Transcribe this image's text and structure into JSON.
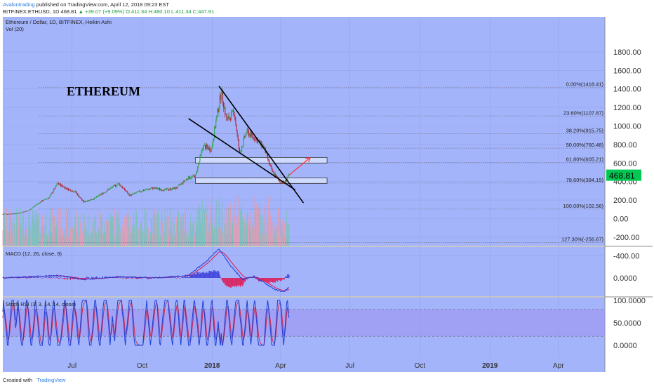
{
  "header": {
    "author": "Avalontrading",
    "published_text": "published on TradingView.com, April 12, 2018 09:23 EST",
    "symbol": "BITFINEX:ETHUSD, 1D",
    "last": "468.81",
    "change": "▲ +39.07 (+9.09%)",
    "ohlc": "O:411.34 H:480.10 L:411.34 C:447.91"
  },
  "footer": {
    "created_with": "Created with",
    "brand": "TradingView"
  },
  "colors": {
    "background": "#a3b4fb",
    "up_candle": "#2fa34a",
    "down_candle": "#b22234",
    "fib_line": "#7a7a9a",
    "macd_line": "#1f3fd6",
    "signal_line": "#e0154f",
    "stoch_k": "#1f3fd6",
    "stoch_d": "#d12a4f",
    "stoch_band": "#9e93f0",
    "price_tag": "#00c853",
    "trendline": "#000000",
    "arrow": "#ff3030",
    "volume_up": "#79c3b3",
    "volume_down": "#e79aa9"
  },
  "chart_data": [
    {
      "type": "candlestick",
      "title": "Ethereum / Dollar, 1D, BITFINEX, Heikin Ashi",
      "subtitle": "Vol (20)",
      "annotation": "ETHEREUM",
      "y_ticks": [
        "1800.00",
        "1600.00",
        "1400.00",
        "1200.00",
        "1000.00",
        "800.00",
        "600.00",
        "400.00",
        "200.00",
        "0.00",
        "-200.00",
        "-400.00"
      ],
      "ylim": [
        -450,
        1900
      ],
      "last_price_label": "468.81",
      "last_price": 468.81,
      "x_ticks": [
        "Jul",
        "Oct",
        "2018",
        "Apr",
        "Jul",
        "Oct",
        "2019",
        "Apr"
      ],
      "close_series": [
        {
          "date": "2017-04-01",
          "close": 50
        },
        {
          "date": "2017-04-20",
          "close": 55
        },
        {
          "date": "2017-05-05",
          "close": 90
        },
        {
          "date": "2017-05-20",
          "close": 180
        },
        {
          "date": "2017-06-01",
          "close": 230
        },
        {
          "date": "2017-06-12",
          "close": 380
        },
        {
          "date": "2017-06-25",
          "close": 320
        },
        {
          "date": "2017-07-05",
          "close": 290
        },
        {
          "date": "2017-07-16",
          "close": 180
        },
        {
          "date": "2017-07-31",
          "close": 220
        },
        {
          "date": "2017-08-15",
          "close": 300
        },
        {
          "date": "2017-08-31",
          "close": 380
        },
        {
          "date": "2017-09-15",
          "close": 250
        },
        {
          "date": "2017-09-30",
          "close": 300
        },
        {
          "date": "2017-10-15",
          "close": 330
        },
        {
          "date": "2017-10-31",
          "close": 310
        },
        {
          "date": "2017-11-15",
          "close": 330
        },
        {
          "date": "2017-11-30",
          "close": 440
        },
        {
          "date": "2017-12-10",
          "close": 460
        },
        {
          "date": "2017-12-20",
          "close": 780
        },
        {
          "date": "2017-12-31",
          "close": 750
        },
        {
          "date": "2018-01-05",
          "close": 1000
        },
        {
          "date": "2018-01-13",
          "close": 1380
        },
        {
          "date": "2018-01-20",
          "close": 1060
        },
        {
          "date": "2018-01-30",
          "close": 1150
        },
        {
          "date": "2018-02-06",
          "close": 700
        },
        {
          "date": "2018-02-15",
          "close": 940
        },
        {
          "date": "2018-02-27",
          "close": 860
        },
        {
          "date": "2018-03-10",
          "close": 770
        },
        {
          "date": "2018-03-20",
          "close": 520
        },
        {
          "date": "2018-03-31",
          "close": 400
        },
        {
          "date": "2018-04-06",
          "close": 390
        },
        {
          "date": "2018-04-12",
          "close": 468.81
        }
      ],
      "fibonacci": [
        {
          "label": "0.00%(1418.41)",
          "value": 1418.41
        },
        {
          "label": "23.60%(1107.87)",
          "value": 1107.87
        },
        {
          "label": "38.20%(915.75)",
          "value": 915.75
        },
        {
          "label": "50.00%(760.48)",
          "value": 760.48
        },
        {
          "label": "61.80%(605.21)",
          "value": 605.21
        },
        {
          "label": "78.60%(384.15)",
          "value": 384.15
        },
        {
          "label": "100.00%(102.56)",
          "value": 102.56
        },
        {
          "label": "127.30%(-256.67)",
          "value": -256.67
        }
      ],
      "zones": [
        {
          "date_from": "2017-12-10",
          "date_to": "2018-06-01",
          "low": 600,
          "high": 660
        },
        {
          "date_from": "2017-12-10",
          "date_to": "2018-06-01",
          "low": 380,
          "high": 440
        }
      ],
      "trendlines": [
        {
          "from": [
            "2018-01-10",
            1430
          ],
          "to": [
            "2018-05-01",
            170
          ]
        },
        {
          "from": [
            "2017-12-01",
            1080
          ],
          "to": [
            "2018-04-20",
            310
          ]
        }
      ],
      "arrow": {
        "from": [
          "2018-04-12",
          468
        ],
        "to": [
          "2018-05-10",
          660
        ]
      }
    },
    {
      "type": "line",
      "title": "MACD (12, 26, close, 9)",
      "y_ticks": [
        "0.0000"
      ],
      "ylim": [
        -1,
        1
      ],
      "series": [
        {
          "name": "MACD",
          "values": [
            {
              "date": "2017-04-01",
              "v": 0
            },
            {
              "date": "2017-06-12",
              "v": 0.08
            },
            {
              "date": "2017-07-16",
              "v": -0.05
            },
            {
              "date": "2017-09-01",
              "v": 0.04
            },
            {
              "date": "2017-10-15",
              "v": 0.0
            },
            {
              "date": "2017-12-01",
              "v": 0.08
            },
            {
              "date": "2017-12-25",
              "v": 0.55
            },
            {
              "date": "2018-01-10",
              "v": 0.95
            },
            {
              "date": "2018-01-25",
              "v": 0.4
            },
            {
              "date": "2018-02-10",
              "v": -0.05
            },
            {
              "date": "2018-02-25",
              "v": 0.05
            },
            {
              "date": "2018-03-10",
              "v": -0.15
            },
            {
              "date": "2018-03-25",
              "v": -0.38
            },
            {
              "date": "2018-04-05",
              "v": -0.45
            },
            {
              "date": "2018-04-12",
              "v": -0.3
            }
          ]
        }
      ]
    },
    {
      "type": "line",
      "title": "Stoch RSI (3, 3, 14, 14, close)",
      "y_ticks": [
        "100.0000",
        "50.0000",
        "0.0000"
      ],
      "ylim": [
        -20,
        120
      ],
      "bands": [
        20,
        80
      ]
    }
  ]
}
